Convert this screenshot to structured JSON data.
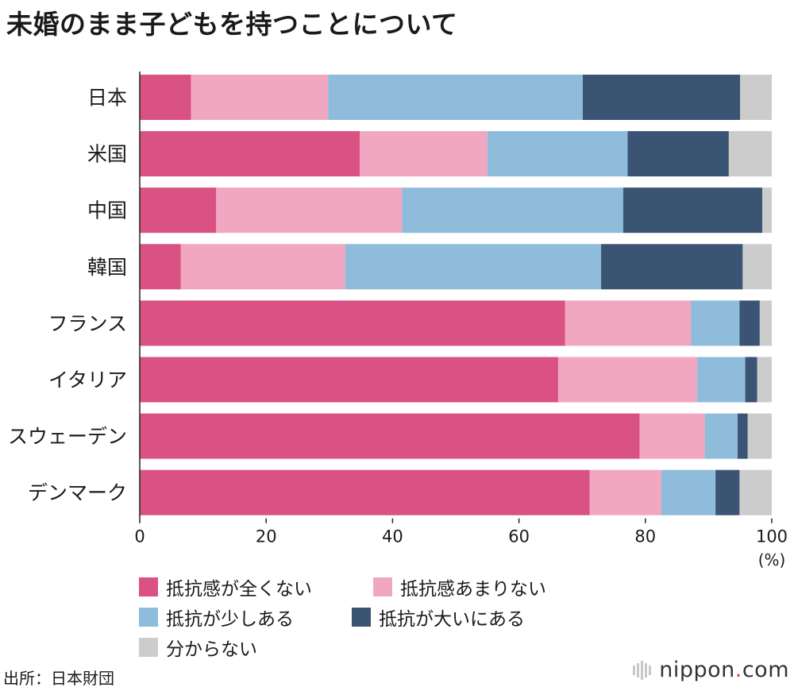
{
  "title": "未婚のまま子どもを持つことについて",
  "unit_label": "(%)",
  "source": "出所：日本財団",
  "logo": {
    "name": "nippon",
    "dot": ".",
    "domain": "com",
    "icon": "bars-icon"
  },
  "colors": {
    "strongly_no": "#d95283",
    "somewhat_no": "#f2a7c1",
    "slightly_yes": "#8fbcdb",
    "strongly_yes": "#3b5474",
    "unknown": "#cccccc",
    "background_band": "#eeeeee"
  },
  "chart_data": {
    "type": "bar",
    "orientation": "horizontal",
    "stacked": true,
    "title": "未婚のまま子どもを持つことについて",
    "categories": [
      "日本",
      "米国",
      "中国",
      "韓国",
      "フランス",
      "イタリア",
      "スウェーデン",
      "デンマーク"
    ],
    "xlabel": "(%)",
    "xlim": [
      0,
      100
    ],
    "xticks": [
      0,
      20,
      40,
      60,
      80,
      100
    ],
    "legend_position": "bottom-left",
    "series": [
      {
        "name": "抵抗感が全くない",
        "color": "#d95283",
        "values": [
          8.1,
          34.8,
          12.1,
          6.5,
          67.3,
          66.2,
          79.1,
          71.2
        ]
      },
      {
        "name": "抵抗感あまりない",
        "color": "#f2a7c1",
        "values": [
          21.7,
          20.2,
          29.4,
          26.0,
          19.9,
          22.0,
          10.3,
          11.3
        ]
      },
      {
        "name": "抵抗が少しある",
        "color": "#8fbcdb",
        "values": [
          40.3,
          22.2,
          35.0,
          40.5,
          7.7,
          7.6,
          5.2,
          8.6
        ]
      },
      {
        "name": "抵抗が大いにある",
        "color": "#3b5474",
        "values": [
          24.9,
          16.0,
          22.0,
          22.4,
          3.2,
          1.9,
          1.6,
          3.8
        ]
      },
      {
        "name": "分からない",
        "color": "#cccccc",
        "values": [
          5.0,
          6.8,
          1.5,
          4.6,
          1.9,
          2.3,
          3.8,
          5.1
        ]
      }
    ]
  }
}
